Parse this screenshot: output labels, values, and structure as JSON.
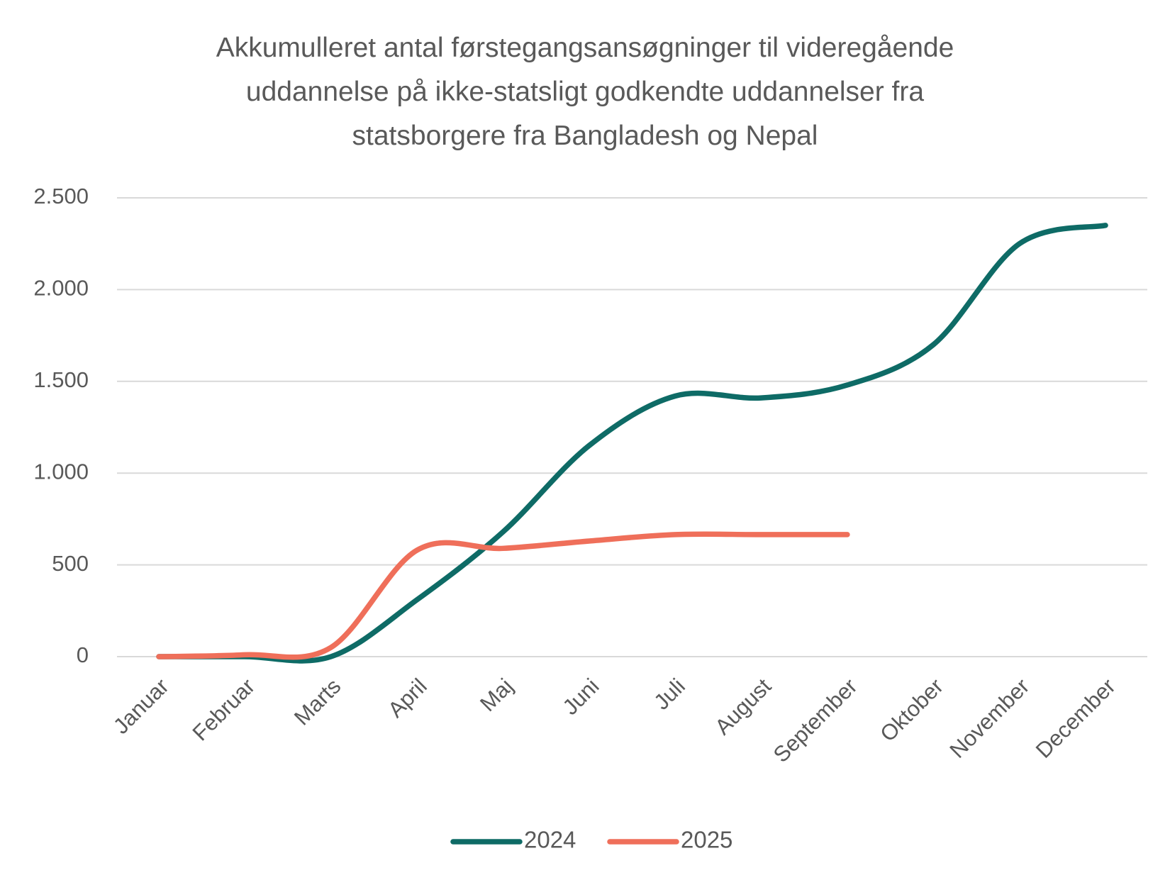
{
  "chart_data": {
    "type": "line",
    "title": [
      "Akkumulleret antal førstegangsansøgninger til videregående",
      "uddannelse på ikke-statsligt godkendte uddannelser fra",
      "statsborgere fra Bangladesh og Nepal"
    ],
    "categories": [
      "Januar",
      "Februar",
      "Marts",
      "April",
      "Maj",
      "Juni",
      "Juli",
      "August",
      "September",
      "Oktober",
      "November",
      "December"
    ],
    "series": [
      {
        "name": "2024",
        "color": "#0e6b66",
        "values": [
          0,
          0,
          0,
          310,
          680,
          1150,
          1420,
          1410,
          1480,
          1700,
          2250,
          2350
        ]
      },
      {
        "name": "2025",
        "color": "#ef6f5a",
        "values": [
          0,
          10,
          50,
          580,
          590,
          630,
          665,
          665,
          665,
          null,
          null,
          null
        ]
      }
    ],
    "ylim": [
      0,
      2500
    ],
    "yticks": [
      0,
      500,
      {
        "value": 1000,
        "label": "1.000"
      },
      {
        "value": 1500,
        "label": "1.500"
      },
      {
        "value": 2000,
        "label": "2.000"
      },
      {
        "value": 2500,
        "label": "2.500"
      }
    ],
    "grid": true,
    "smooth": true,
    "legend": "bottom"
  }
}
